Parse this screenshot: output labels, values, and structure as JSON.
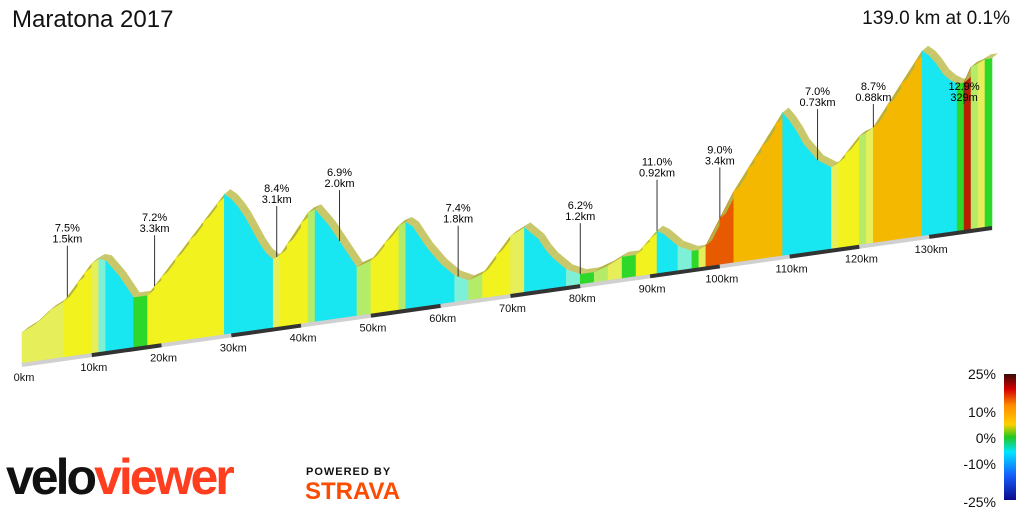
{
  "header": {
    "title": "Maratona 2017",
    "summary": "139.0 km at 0.1%"
  },
  "branding": {
    "logo_part1": "velo",
    "logo_part2": "viewer",
    "powered_by": "POWERED BY",
    "strava": "STRAVA",
    "logo_color": "#ff3d1f",
    "strava_color": "#fc4c02"
  },
  "gradient_scale": {
    "labels": [
      "25%",
      "10%",
      "0%",
      "-10%",
      "-25%"
    ],
    "colors": [
      "#3a0a08",
      "#d40000",
      "#ff8c00",
      "#ffd000",
      "#22c81e",
      "#00e5ff",
      "#1560ff",
      "#0a0a8c"
    ]
  },
  "chart_data": {
    "type": "area",
    "title": "Maratona 2017",
    "subtitle": "139.0 km at 0.1%",
    "x_unit": "km",
    "xlim": [
      0,
      139
    ],
    "x_ticks": [
      {
        "value": 0,
        "label": "0km"
      },
      {
        "value": 10,
        "label": "10km"
      },
      {
        "value": 20,
        "label": "20km"
      },
      {
        "value": 30,
        "label": "30km"
      },
      {
        "value": 40,
        "label": "40km"
      },
      {
        "value": 50,
        "label": "50km"
      },
      {
        "value": 60,
        "label": "60km"
      },
      {
        "value": 70,
        "label": "70km"
      },
      {
        "value": 80,
        "label": "80km"
      },
      {
        "value": 90,
        "label": "90km"
      },
      {
        "value": 100,
        "label": "100km"
      },
      {
        "value": 110,
        "label": "110km"
      },
      {
        "value": 120,
        "label": "120km"
      },
      {
        "value": 130,
        "label": "130km"
      }
    ],
    "elevation_profile": {
      "distance_km": [
        0,
        2,
        4,
        6,
        8,
        9,
        10,
        11,
        12,
        14,
        16,
        18,
        19,
        20,
        22,
        24,
        26,
        28,
        29,
        30,
        31,
        32,
        34,
        35,
        36,
        37,
        38,
        40,
        41,
        42,
        44,
        46,
        48,
        50,
        52,
        54,
        55,
        56,
        57,
        58,
        60,
        62,
        64,
        66,
        68,
        70,
        72,
        74,
        75,
        76,
        78,
        80,
        82,
        84,
        86,
        88,
        89,
        90,
        91,
        92,
        94,
        96,
        97,
        98,
        100,
        102,
        104,
        105,
        106,
        108,
        109,
        110,
        111,
        112,
        114,
        116,
        117,
        118,
        120,
        121,
        122,
        124,
        126,
        128,
        129,
        130,
        131,
        132,
        133,
        134,
        135,
        136,
        137,
        138,
        139
      ],
      "gradient_pct": [
        0,
        3,
        5,
        3,
        7.5,
        7.5,
        7.5,
        3,
        -2,
        -8,
        -10,
        0,
        7.2,
        7.2,
        7.2,
        7.2,
        7.2,
        7.2,
        7.2,
        -5,
        -8,
        -10,
        -12,
        -10,
        -6,
        3,
        8.4,
        8.4,
        8.4,
        2,
        -8,
        -10,
        -10,
        2,
        6.9,
        6.9,
        2,
        -5,
        -10,
        -10,
        -8,
        -6,
        -3,
        2,
        7.4,
        7.4,
        3,
        -6,
        -10,
        -8,
        -6,
        -3,
        0,
        2,
        3,
        0,
        6.2,
        6.2,
        6.2,
        -4,
        -6,
        -3,
        0,
        3,
        11.0,
        11.0,
        9.0,
        9.0,
        9.0,
        9.0,
        9.0,
        -8,
        -10,
        -12,
        -8,
        -4,
        3,
        7.0,
        7.0,
        2,
        4,
        8.7,
        8.7,
        8.7,
        8.7,
        -5,
        -8,
        -10,
        -6,
        -4,
        0,
        12.9,
        2,
        3,
        0
      ]
    },
    "climbs": [
      {
        "km": 6.5,
        "gradient": "7.5%",
        "length": "1.5km"
      },
      {
        "km": 19,
        "gradient": "7.2%",
        "length": "3.3km"
      },
      {
        "km": 36.5,
        "gradient": "8.4%",
        "length": "3.1km"
      },
      {
        "km": 45.5,
        "gradient": "6.9%",
        "length": "2.0km"
      },
      {
        "km": 62.5,
        "gradient": "7.4%",
        "length": "1.8km"
      },
      {
        "km": 80,
        "gradient": "6.2%",
        "length": "1.2km"
      },
      {
        "km": 91,
        "gradient": "11.0%",
        "length": "0.92km"
      },
      {
        "km": 100,
        "gradient": "9.0%",
        "length": "3.4km"
      },
      {
        "km": 114,
        "gradient": "7.0%",
        "length": "0.73km"
      },
      {
        "km": 122,
        "gradient": "8.7%",
        "length": "0.88km"
      },
      {
        "km": 135,
        "gradient": "12.9%",
        "length": "329m"
      }
    ]
  }
}
